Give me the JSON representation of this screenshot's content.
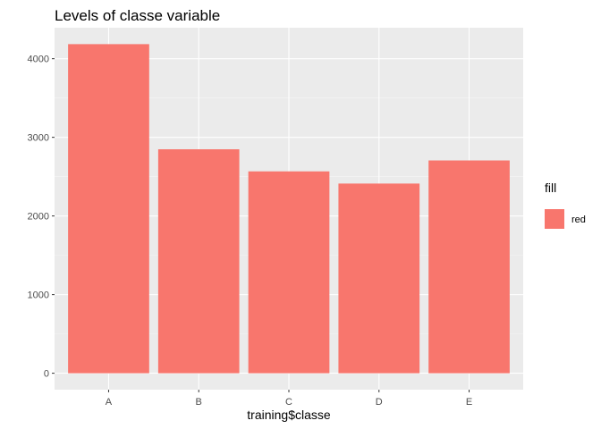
{
  "chart_data": {
    "type": "bar",
    "title": "Levels of classe variable",
    "xlabel": "training$classe",
    "ylabel": "",
    "categories": [
      "A",
      "B",
      "C",
      "D",
      "E"
    ],
    "series": [
      {
        "name": "red",
        "values": [
          4185,
          2848,
          2567,
          2412,
          2706
        ]
      }
    ],
    "ylim": [
      -209,
      4394
    ],
    "yticks": [
      0,
      1000,
      2000,
      3000,
      4000
    ],
    "ytick_labels": [
      "0",
      "1000",
      "2000",
      "3000",
      "4000"
    ],
    "grid": true,
    "legend": {
      "title": "fill",
      "position": "right",
      "entries": [
        "red"
      ]
    },
    "colors": {
      "bar": "#F8766D",
      "panel": "#EBEBEB",
      "grid_major": "#FFFFFF",
      "grid_minor": "#F5F5F5",
      "tick": "#333333"
    }
  }
}
